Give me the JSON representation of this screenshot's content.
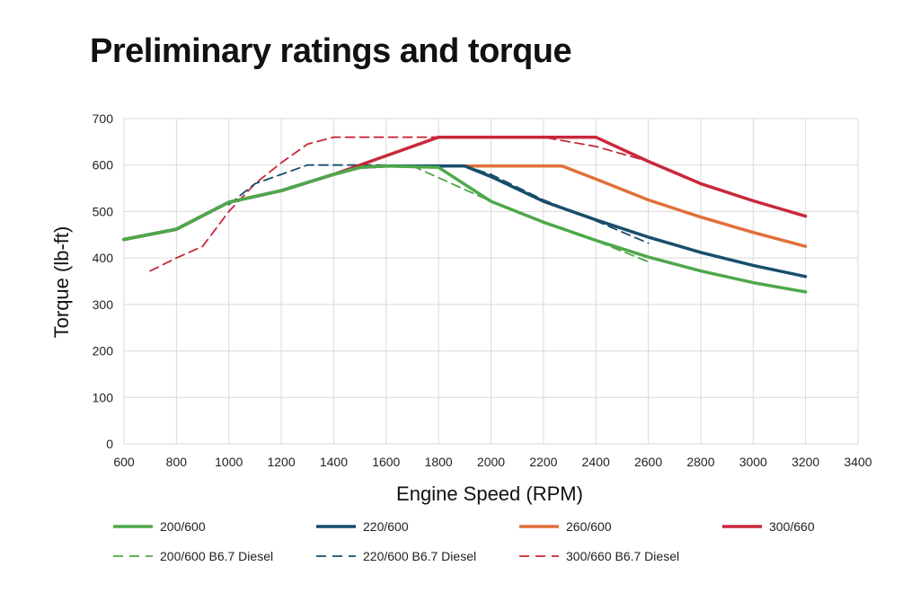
{
  "chart_data": {
    "type": "line",
    "title": "Preliminary ratings and torque",
    "xlabel": "Engine Speed (RPM)",
    "ylabel": "Torque (lb-ft)",
    "xlim": [
      600,
      3400
    ],
    "ylim": [
      0,
      700
    ],
    "xticks": [
      600,
      800,
      1000,
      1200,
      1400,
      1600,
      1800,
      2000,
      2200,
      2400,
      2600,
      2800,
      3000,
      3200,
      3400
    ],
    "yticks": [
      0,
      100,
      200,
      300,
      400,
      500,
      600,
      700
    ],
    "grid": true,
    "legend": "bottom",
    "series": [
      {
        "name": "200/600",
        "color": "#4ea84a",
        "style": "solid",
        "x": [
          600,
          800,
          1000,
          1200,
          1400,
          1500,
          1600,
          1800,
          2000,
          2200,
          2400,
          2600,
          2800,
          3000,
          3200
        ],
        "y": [
          440,
          462,
          520,
          545,
          580,
          595,
          598,
          595,
          522,
          477,
          438,
          402,
          372,
          347,
          327
        ]
      },
      {
        "name": "220/600",
        "color": "#174e6b",
        "style": "solid",
        "x": [
          600,
          800,
          1000,
          1200,
          1400,
          1500,
          1600,
          1800,
          1900,
          2000,
          2200,
          2400,
          2600,
          2800,
          3000,
          3200
        ],
        "y": [
          440,
          462,
          520,
          545,
          580,
          595,
          598,
          598,
          598,
          575,
          522,
          482,
          445,
          412,
          384,
          360
        ]
      },
      {
        "name": "260/600",
        "color": "#e0703a",
        "style": "solid",
        "x": [
          600,
          800,
          1000,
          1200,
          1400,
          1500,
          1600,
          1800,
          2000,
          2270,
          2400,
          2600,
          2800,
          3000,
          3200
        ],
        "y": [
          440,
          462,
          520,
          545,
          580,
          595,
          598,
          598,
          598,
          598,
          570,
          525,
          488,
          455,
          425
        ]
      },
      {
        "name": "300/660",
        "color": "#c8283a",
        "style": "solid",
        "x": [
          600,
          800,
          1000,
          1200,
          1400,
          1600,
          1800,
          2000,
          2200,
          2400,
          2600,
          2800,
          3000,
          3200
        ],
        "y": [
          440,
          462,
          520,
          545,
          580,
          620,
          660,
          660,
          660,
          660,
          608,
          560,
          523,
          490
        ]
      },
      {
        "name": "200/600 B6.7 Diesel",
        "color": "#4ea84a",
        "style": "dashed",
        "x": [
          1700,
          2000,
          2200,
          2400,
          2600
        ],
        "y": [
          598,
          522,
          477,
          437,
          392
        ]
      },
      {
        "name": "220/600 B6.7 Diesel",
        "color": "#174e6b",
        "style": "dashed",
        "x": [
          1000,
          1100,
          1200,
          1300,
          1400,
          1600,
          1800,
          1900,
          2000,
          2200,
          2400,
          2600
        ],
        "y": [
          515,
          560,
          580,
          600,
          600,
          600,
          598,
          598,
          580,
          525,
          480,
          432
        ]
      },
      {
        "name": "300/660 B6.7 Diesel",
        "color": "#c8283a",
        "style": "dashed",
        "x": [
          700,
          800,
          900,
          1000,
          1100,
          1200,
          1300,
          1400,
          1600,
          1800,
          2000,
          2200,
          2400,
          2600
        ],
        "y": [
          372,
          400,
          425,
          500,
          560,
          605,
          645,
          660,
          660,
          660,
          660,
          660,
          640,
          608
        ]
      }
    ]
  }
}
